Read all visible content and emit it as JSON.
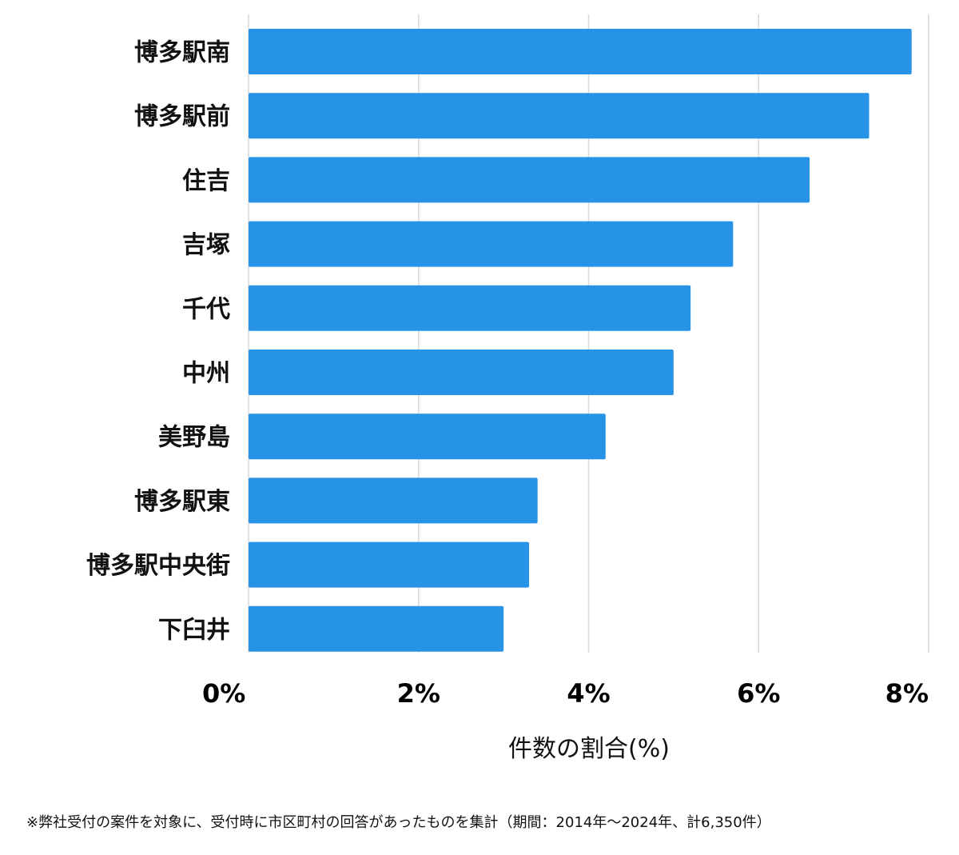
{
  "chart_data": {
    "type": "bar",
    "orientation": "horizontal",
    "categories": [
      "博多駅南",
      "博多駅前",
      "住吉",
      "吉塚",
      "千代",
      "中州",
      "美野島",
      "博多駅東",
      "博多駅中央街",
      "下臼井"
    ],
    "values": [
      7.8,
      7.3,
      6.6,
      5.7,
      5.2,
      5.0,
      4.2,
      3.4,
      3.3,
      3.0
    ],
    "xlim": [
      0,
      8
    ],
    "xticks": [
      0,
      2,
      4,
      6,
      8
    ],
    "xtick_labels": [
      "0%",
      "2%",
      "4%",
      "6%",
      "8%"
    ],
    "xlabel": "件数の割合(%)",
    "ylabel": "",
    "grid": true,
    "bar_color": "#2693e6",
    "grid_color": "#d9d9d9"
  },
  "footnote": "※弊社受付の案件を対象に、受付時に市区町村の回答があったものを集計（期間：2014年～2024年、計6,350件）"
}
